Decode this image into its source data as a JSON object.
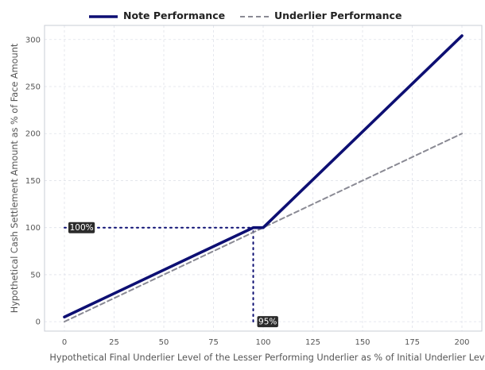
{
  "chart_data": {
    "type": "line",
    "xlabel": "Hypothetical Final Underlier Level of the Lesser Performing Underlier as % of Initial Underlier Level",
    "ylabel": "Hypothetical Cash Settlement Amount as % of Face Amount",
    "xlim": [
      -10,
      210
    ],
    "ylim": [
      -10,
      315
    ],
    "xticks": [
      0,
      25,
      50,
      75,
      100,
      125,
      150,
      175,
      200
    ],
    "yticks": [
      0,
      50,
      100,
      150,
      200,
      250,
      300
    ],
    "grid": true,
    "legend_position": "top-center",
    "series": [
      {
        "name": "Note Performance",
        "color": "#0d0f73",
        "style": "solid",
        "x": [
          0,
          95,
          100,
          200
        ],
        "y": [
          5,
          100,
          100,
          304
        ]
      },
      {
        "name": "Underlier Performance",
        "color": "#8a8a94",
        "style": "dashed",
        "x": [
          0,
          200
        ],
        "y": [
          0,
          200
        ]
      }
    ],
    "annotations": [
      {
        "text": "100%",
        "x": 0,
        "y": 100,
        "guide": "horizontal",
        "guide_to_x": 95
      },
      {
        "text": "95%",
        "x": 95,
        "y": 0,
        "guide": "vertical",
        "guide_to_y": 100
      }
    ]
  }
}
